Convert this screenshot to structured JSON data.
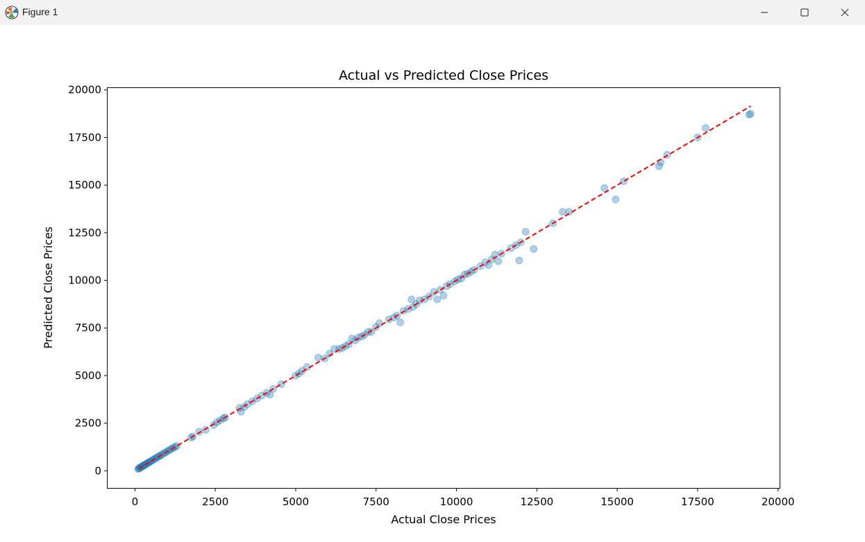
{
  "window": {
    "title": "Figure 1",
    "icons": {
      "app": "matplotlib-icon",
      "minimize": "minimize-icon",
      "maximize": "maximize-icon",
      "close": "close-icon"
    }
  },
  "chart_data": {
    "type": "scatter",
    "title": "Actual vs Predicted Close Prices",
    "xlabel": "Actual Close Prices",
    "ylabel": "Predicted Close Prices",
    "xlim": [
      -850,
      20050
    ],
    "ylim": [
      -900,
      20100
    ],
    "xticks": [
      0,
      2500,
      5000,
      7500,
      10000,
      12500,
      15000,
      17500,
      20000
    ],
    "yticks": [
      0,
      2500,
      5000,
      7500,
      10000,
      12500,
      15000,
      17500,
      20000
    ],
    "grid": false,
    "point_color": "#1f77b4",
    "point_alpha": 0.35,
    "reference_line": {
      "style": "dashed",
      "color": "#ff0000",
      "from": [
        100,
        100
      ],
      "to": [
        19150,
        19150
      ]
    },
    "points": [
      [
        100,
        100
      ],
      [
        120,
        110
      ],
      [
        140,
        150
      ],
      [
        160,
        170
      ],
      [
        180,
        175
      ],
      [
        200,
        210
      ],
      [
        220,
        230
      ],
      [
        240,
        240
      ],
      [
        260,
        270
      ],
      [
        280,
        290
      ],
      [
        300,
        300
      ],
      [
        320,
        330
      ],
      [
        350,
        360
      ],
      [
        380,
        380
      ],
      [
        400,
        410
      ],
      [
        430,
        440
      ],
      [
        460,
        470
      ],
      [
        490,
        500
      ],
      [
        520,
        530
      ],
      [
        560,
        570
      ],
      [
        600,
        610
      ],
      [
        640,
        650
      ],
      [
        680,
        700
      ],
      [
        720,
        730
      ],
      [
        760,
        770
      ],
      [
        800,
        820
      ],
      [
        850,
        860
      ],
      [
        900,
        920
      ],
      [
        950,
        960
      ],
      [
        1000,
        1010
      ],
      [
        1050,
        1070
      ],
      [
        1100,
        1120
      ],
      [
        1150,
        1160
      ],
      [
        1200,
        1220
      ],
      [
        1250,
        1250
      ],
      [
        1300,
        1310
      ],
      [
        1750,
        1750
      ],
      [
        1800,
        1800
      ],
      [
        2000,
        2050
      ],
      [
        2200,
        2150
      ],
      [
        2450,
        2400
      ],
      [
        2550,
        2550
      ],
      [
        2650,
        2650
      ],
      [
        2750,
        2750
      ],
      [
        2800,
        2800
      ],
      [
        3250,
        3300
      ],
      [
        3300,
        3100
      ],
      [
        3400,
        3350
      ],
      [
        3500,
        3500
      ],
      [
        3650,
        3650
      ],
      [
        3800,
        3800
      ],
      [
        3950,
        3950
      ],
      [
        4100,
        4100
      ],
      [
        4200,
        4000
      ],
      [
        4300,
        4300
      ],
      [
        4550,
        4550
      ],
      [
        5000,
        5000
      ],
      [
        5100,
        5100
      ],
      [
        5200,
        5250
      ],
      [
        5350,
        5450
      ],
      [
        5700,
        5950
      ],
      [
        5900,
        5900
      ],
      [
        6050,
        6150
      ],
      [
        6200,
        6400
      ],
      [
        6350,
        6400
      ],
      [
        6450,
        6450
      ],
      [
        6550,
        6550
      ],
      [
        6650,
        6650
      ],
      [
        6750,
        6950
      ],
      [
        6850,
        6850
      ],
      [
        6950,
        7000
      ],
      [
        7050,
        7050
      ],
      [
        7150,
        7150
      ],
      [
        7250,
        7300
      ],
      [
        7350,
        7300
      ],
      [
        7500,
        7550
      ],
      [
        7600,
        7750
      ],
      [
        7900,
        7950
      ],
      [
        8050,
        8050
      ],
      [
        8150,
        8150
      ],
      [
        8250,
        7800
      ],
      [
        8350,
        8400
      ],
      [
        8500,
        8500
      ],
      [
        8600,
        9000
      ],
      [
        8650,
        8600
      ],
      [
        8750,
        8750
      ],
      [
        8850,
        8950
      ],
      [
        9000,
        9000
      ],
      [
        9150,
        9150
      ],
      [
        9300,
        9400
      ],
      [
        9400,
        9000
      ],
      [
        9500,
        9500
      ],
      [
        9600,
        9200
      ],
      [
        9700,
        9700
      ],
      [
        9800,
        9800
      ],
      [
        9950,
        9950
      ],
      [
        10050,
        10050
      ],
      [
        10150,
        10100
      ],
      [
        10250,
        10300
      ],
      [
        10350,
        10350
      ],
      [
        10450,
        10450
      ],
      [
        10550,
        10550
      ],
      [
        10750,
        10750
      ],
      [
        10900,
        10950
      ],
      [
        11000,
        10800
      ],
      [
        11100,
        11100
      ],
      [
        11200,
        11350
      ],
      [
        11300,
        11000
      ],
      [
        11400,
        11400
      ],
      [
        11700,
        11700
      ],
      [
        11850,
        11850
      ],
      [
        11950,
        11050
      ],
      [
        12000,
        12000
      ],
      [
        12150,
        12550
      ],
      [
        12400,
        11650
      ],
      [
        13000,
        13000
      ],
      [
        13300,
        13600
      ],
      [
        13500,
        13600
      ],
      [
        14600,
        14850
      ],
      [
        14950,
        14250
      ],
      [
        15200,
        15200
      ],
      [
        16300,
        16000
      ],
      [
        16350,
        16200
      ],
      [
        16550,
        16600
      ],
      [
        17500,
        17500
      ],
      [
        17750,
        18000
      ],
      [
        19100,
        18700
      ],
      [
        19150,
        18750
      ]
    ]
  }
}
